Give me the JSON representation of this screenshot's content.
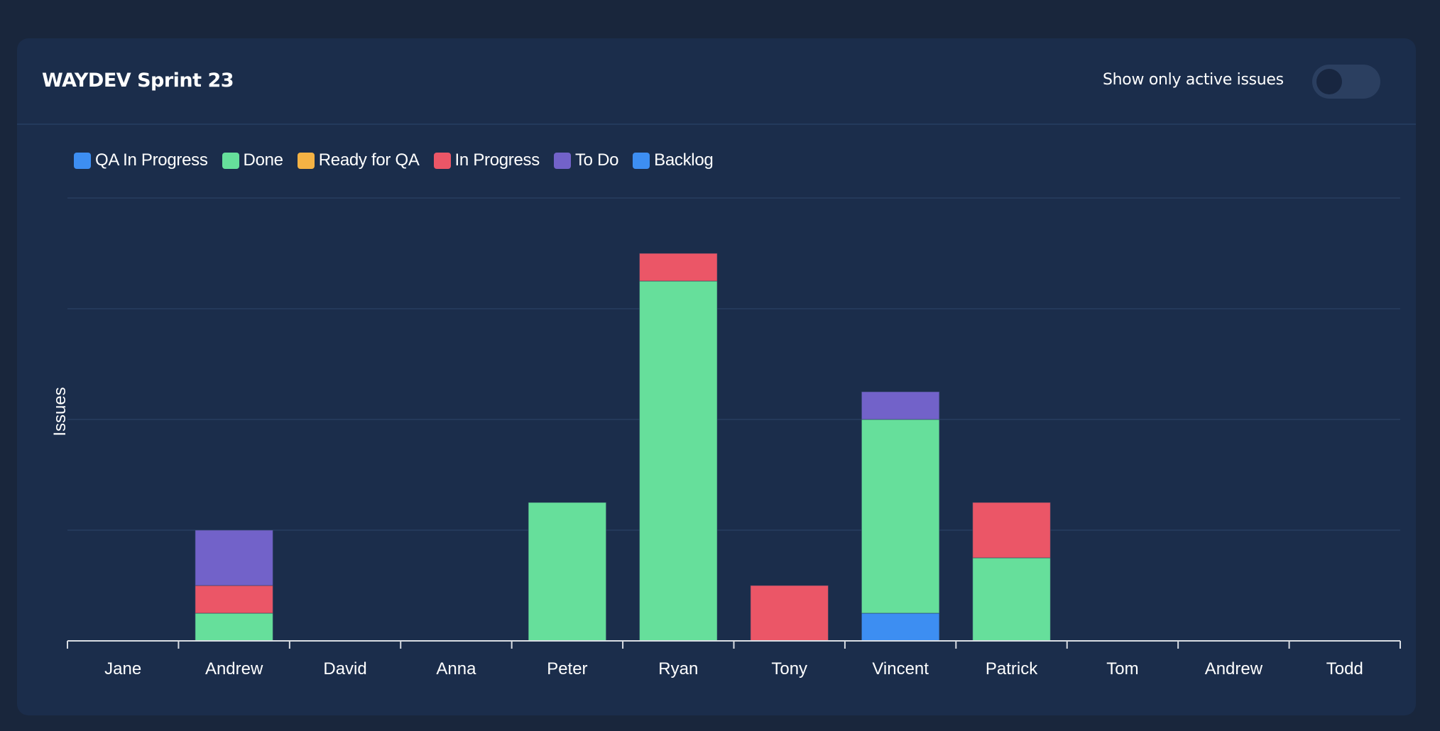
{
  "header": {
    "title": "WAYDEV Sprint 23",
    "toggle_label": "Show only active issues",
    "toggle_on": false
  },
  "colors": {
    "page_bg": "#19263c",
    "panel_bg": "#1b2d4b",
    "grid": "#24395a",
    "axis": "#d9dde3"
  },
  "chart_data": {
    "type": "bar",
    "stacked": true,
    "title": "",
    "xlabel": "",
    "ylabel": "Issues",
    "ylim": [
      0,
      16
    ],
    "y_grid_step": 4,
    "grid": true,
    "legend_position": "top-left",
    "categories": [
      "Jane",
      "Andrew",
      "David",
      "Anna",
      "Peter",
      "Ryan",
      "Tony",
      "Vincent",
      "Patrick",
      "Tom",
      "Andrew",
      "Todd"
    ],
    "series": [
      {
        "name": "QA In Progress",
        "color": "#3d8ef2",
        "values": [
          0,
          0,
          0,
          0,
          0,
          0,
          0,
          1,
          0,
          0,
          0,
          0
        ]
      },
      {
        "name": "Done",
        "color": "#66df9b",
        "values": [
          0,
          1,
          0,
          0,
          5,
          13,
          0,
          7,
          3,
          0,
          0,
          0
        ]
      },
      {
        "name": "Ready for QA",
        "color": "#f4b244",
        "values": [
          0,
          0,
          0,
          0,
          0,
          0,
          0,
          0,
          0,
          0,
          0,
          0
        ]
      },
      {
        "name": "In Progress",
        "color": "#eb5667",
        "values": [
          0,
          1,
          0,
          0,
          0,
          1,
          2,
          0,
          2,
          0,
          0,
          0
        ]
      },
      {
        "name": "To Do",
        "color": "#7262c9",
        "values": [
          0,
          2,
          0,
          0,
          0,
          0,
          0,
          1,
          0,
          0,
          0,
          0
        ]
      },
      {
        "name": "Backlog",
        "color": "#3d8ef2",
        "values": [
          0,
          0,
          0,
          0,
          0,
          0,
          0,
          0,
          0,
          0,
          0,
          0
        ]
      }
    ]
  }
}
